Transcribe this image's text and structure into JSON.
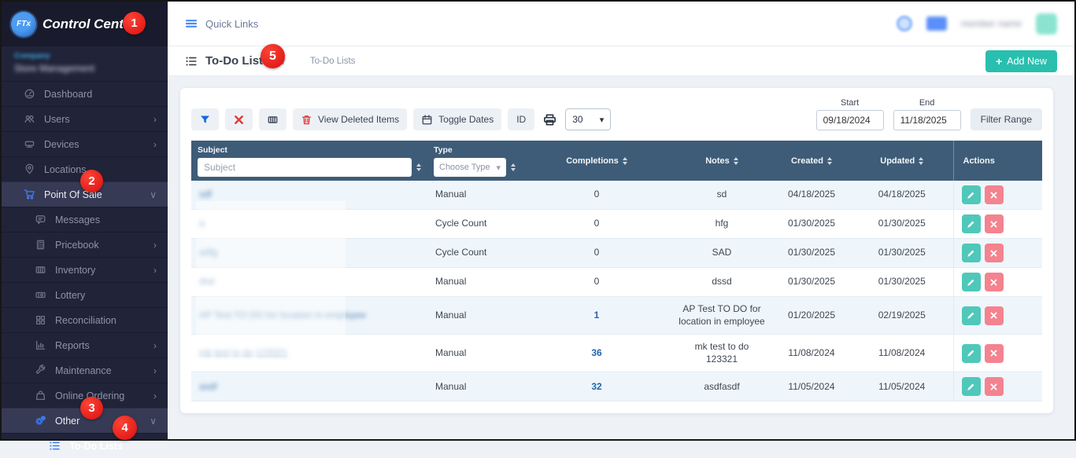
{
  "colors": {
    "accent_teal": "#29bfae",
    "badge_red": "#db0e0e",
    "table_header_slate": "#3e5c78",
    "link_blue": "#2465ae",
    "sidebar_accent_blue": "#3f7cfa"
  },
  "callouts": [
    "1",
    "2",
    "3",
    "4",
    "5"
  ],
  "sidebar": {
    "brand": {
      "logo_text": "FTx",
      "title": "Control Center"
    },
    "company_blurred": {
      "line1": "Company",
      "line2": "Store Management"
    },
    "items": [
      {
        "label": "Dashboard",
        "icon": "dashboard",
        "level": 0
      },
      {
        "label": "Users",
        "icon": "users",
        "level": 0,
        "chevron": "right"
      },
      {
        "label": "Devices",
        "icon": "devices",
        "level": 0,
        "chevron": "right"
      },
      {
        "label": "Locations",
        "icon": "locations",
        "level": 0
      },
      {
        "label": "Point Of Sale",
        "icon": "cart",
        "level": 0,
        "chevron": "down",
        "active": true,
        "accent": true
      },
      {
        "label": "Messages",
        "icon": "messages",
        "level": 1
      },
      {
        "label": "Pricebook",
        "icon": "pricebook",
        "level": 1,
        "chevron": "right"
      },
      {
        "label": "Inventory",
        "icon": "inventory",
        "level": 1,
        "chevron": "right"
      },
      {
        "label": "Lottery",
        "icon": "lottery",
        "level": 1
      },
      {
        "label": "Reconciliation",
        "icon": "reconciliation",
        "level": 1
      },
      {
        "label": "Reports",
        "icon": "reports",
        "level": 1,
        "chevron": "right"
      },
      {
        "label": "Maintenance",
        "icon": "maintenance",
        "level": 1,
        "chevron": "right"
      },
      {
        "label": "Online Ordering",
        "icon": "bag",
        "level": 1,
        "chevron": "right"
      },
      {
        "label": "Other",
        "icon": "gears",
        "level": 1,
        "chevron": "down",
        "active": true,
        "accent": true
      },
      {
        "label": "To-Do Lists",
        "icon": "list",
        "level": 2,
        "accent": true,
        "emphasis": true
      }
    ]
  },
  "topbar": {
    "quick_links_label": "Quick Links",
    "user_name_blurred": "member name"
  },
  "page": {
    "title": "To-Do Lists",
    "breadcrumb": "To-Do Lists",
    "add_new_plus": "+",
    "add_new_label": "Add New"
  },
  "toolbar": {
    "view_deleted_label": "View Deleted Items",
    "toggle_dates_label": "Toggle Dates",
    "id_label": "ID",
    "page_size_value": "30",
    "start_label": "Start",
    "end_label": "End",
    "start_value": "09/18/2024",
    "end_value": "11/18/2025",
    "filter_range_label": "Filter Range"
  },
  "table": {
    "header": {
      "subject_label": "Subject",
      "subject_placeholder": "Subject",
      "type_label": "Type",
      "type_placeholder": "Choose Type",
      "completions": "Completions",
      "notes": "Notes",
      "created": "Created",
      "updated": "Updated",
      "actions": "Actions"
    },
    "rows": [
      {
        "subject_redacted": "sdf",
        "type": "Manual",
        "completions": "0",
        "completions_link": false,
        "notes": "sd",
        "created": "04/18/2025",
        "updated": "04/18/2025"
      },
      {
        "subject_redacted": "a",
        "type": "Cycle Count",
        "completions": "0",
        "completions_link": false,
        "notes": "hfg",
        "created": "01/30/2025",
        "updated": "01/30/2025"
      },
      {
        "subject_redacted": "adfg",
        "type": "Cycle Count",
        "completions": "0",
        "completions_link": false,
        "notes": "SAD",
        "created": "01/30/2025",
        "updated": "01/30/2025"
      },
      {
        "subject_redacted": "dsd",
        "type": "Manual",
        "completions": "0",
        "completions_link": false,
        "notes": "dssd",
        "created": "01/30/2025",
        "updated": "01/30/2025"
      },
      {
        "subject_redacted": "AP Test TO DO for location in employee",
        "type": "Manual",
        "completions": "1",
        "completions_link": true,
        "notes": "AP Test TO DO for location in employee",
        "created": "01/20/2025",
        "updated": "02/19/2025"
      },
      {
        "subject_redacted": "mk test to do 123321",
        "type": "Manual",
        "completions": "36",
        "completions_link": true,
        "notes": "mk test to do 123321",
        "created": "11/08/2024",
        "updated": "11/08/2024"
      },
      {
        "subject_redacted": "asdf",
        "type": "Manual",
        "completions": "32",
        "completions_link": true,
        "notes": "asdfasdf",
        "created": "11/05/2024",
        "updated": "11/05/2024"
      }
    ]
  }
}
